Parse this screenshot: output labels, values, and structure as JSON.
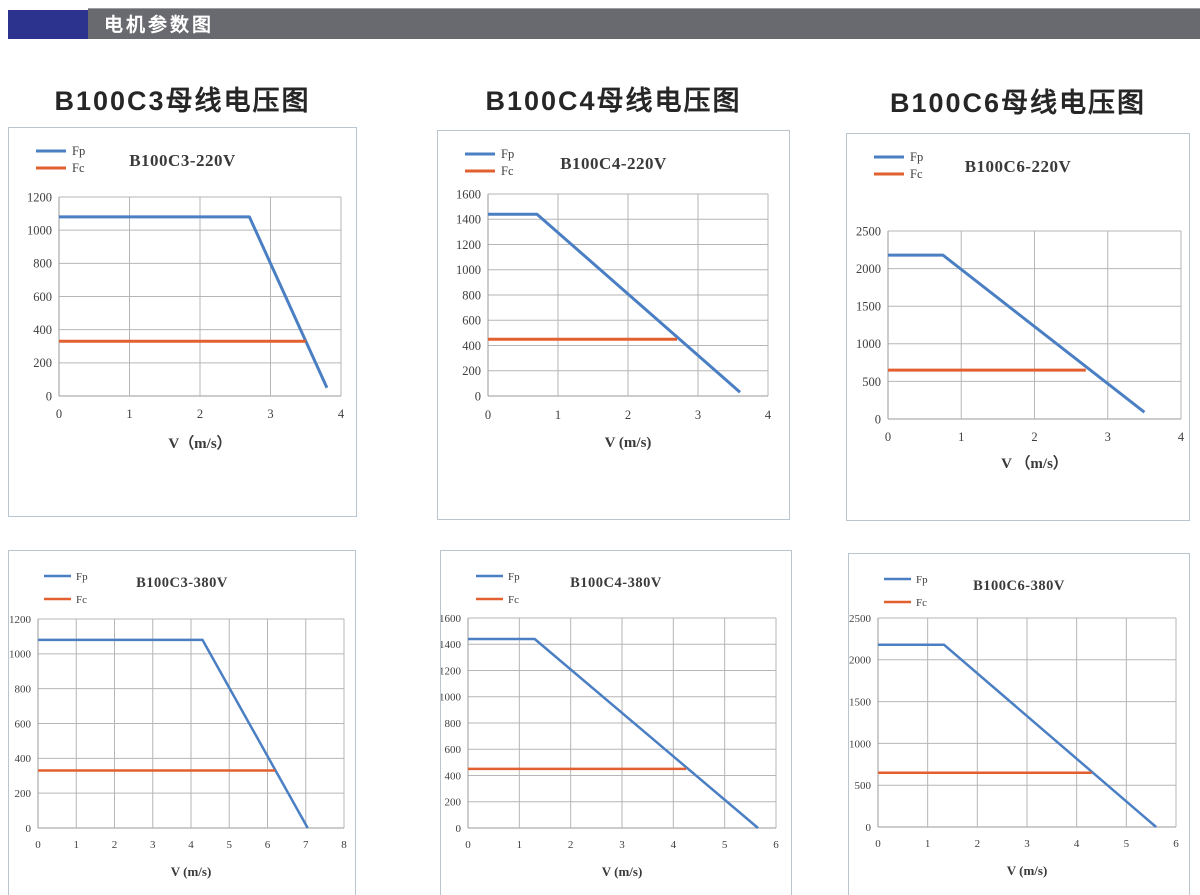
{
  "header": {
    "title": "电机参数图",
    "accent_color": "#2b338f",
    "bar_color": "#696970",
    "text_color": "#ffffff"
  },
  "columns": [
    {
      "title": "B100C3母线电压图"
    },
    {
      "title": "B100C4母线电压图"
    },
    {
      "title": "B100C6母线电压图"
    }
  ],
  "colors": {
    "fp": "#4b7fc3",
    "fc": "#e2602f",
    "grid": "#b6b6b6",
    "axis": "#999999",
    "panel_border": "#bac6cf",
    "text": "#3f3f3f"
  },
  "chart_data": [
    {
      "id": "b100c3-220v",
      "type": "line",
      "title": "B100C3-220V",
      "xlabel": "V（m/s）",
      "grid": true,
      "legend_position": "top-left",
      "xlim": [
        0,
        4
      ],
      "xticks": [
        0,
        1,
        2,
        3,
        4
      ],
      "ylim": [
        0,
        1200
      ],
      "yticks": [
        0,
        200,
        400,
        600,
        800,
        1000,
        1200
      ],
      "series": [
        {
          "name": "Fp",
          "color": "#4b7fc3",
          "points": [
            [
              0,
              1080
            ],
            [
              2.7,
              1080
            ],
            [
              3.8,
              50
            ]
          ]
        },
        {
          "name": "Fc",
          "color": "#e2602f",
          "points": [
            [
              0,
              330
            ],
            [
              3.5,
              330
            ]
          ]
        }
      ]
    },
    {
      "id": "b100c4-220v",
      "type": "line",
      "title": "B100C4-220V",
      "xlabel": "V (m/s)",
      "grid": true,
      "legend_position": "top-left",
      "xlim": [
        0,
        4
      ],
      "xticks": [
        0,
        1,
        2,
        3,
        4
      ],
      "ylim": [
        0,
        1600
      ],
      "yticks": [
        0,
        200,
        400,
        600,
        800,
        1000,
        1200,
        1400,
        1600
      ],
      "series": [
        {
          "name": "Fp",
          "color": "#4b7fc3",
          "points": [
            [
              0,
              1440
            ],
            [
              0.7,
              1440
            ],
            [
              3.6,
              30
            ]
          ]
        },
        {
          "name": "Fc",
          "color": "#e2602f",
          "points": [
            [
              0,
              450
            ],
            [
              2.7,
              450
            ]
          ]
        }
      ]
    },
    {
      "id": "b100c6-220v",
      "type": "line",
      "title": "B100C6-220V",
      "xlabel": "V （m/s）",
      "grid": true,
      "legend_position": "top-left",
      "xlim": [
        0,
        4
      ],
      "xticks": [
        0,
        1,
        2,
        3,
        4
      ],
      "ylim": [
        0,
        2500
      ],
      "yticks": [
        0,
        500,
        1000,
        1500,
        2000,
        2500
      ],
      "series": [
        {
          "name": "Fp",
          "color": "#4b7fc3",
          "points": [
            [
              0,
              2180
            ],
            [
              0.75,
              2180
            ],
            [
              3.5,
              90
            ]
          ]
        },
        {
          "name": "Fc",
          "color": "#e2602f",
          "points": [
            [
              0,
              650
            ],
            [
              2.7,
              650
            ]
          ]
        }
      ]
    },
    {
      "id": "b100c3-380v",
      "type": "line",
      "title": "B100C3-380V",
      "xlabel": "V (m/s)",
      "grid": true,
      "legend_position": "top-left",
      "xlim": [
        0,
        8
      ],
      "xticks": [
        0,
        1,
        2,
        3,
        4,
        5,
        6,
        7,
        8
      ],
      "ylim": [
        0,
        1200
      ],
      "yticks": [
        0,
        200,
        400,
        600,
        800,
        1000,
        1200
      ],
      "series": [
        {
          "name": "Fp",
          "color": "#4b7fc3",
          "points": [
            [
              0,
              1080
            ],
            [
              4.3,
              1080
            ],
            [
              7.05,
              0
            ]
          ]
        },
        {
          "name": "Fc",
          "color": "#e2602f",
          "points": [
            [
              0,
              330
            ],
            [
              6.2,
              330
            ]
          ]
        }
      ]
    },
    {
      "id": "b100c4-380v",
      "type": "line",
      "title": "B100C4-380V",
      "xlabel": "V (m/s)",
      "grid": true,
      "legend_position": "top-left",
      "xlim": [
        0,
        6
      ],
      "xticks": [
        0,
        1,
        2,
        3,
        4,
        5,
        6
      ],
      "ylim": [
        0,
        1600
      ],
      "yticks": [
        0,
        200,
        400,
        600,
        800,
        1000,
        1200,
        1400,
        1600
      ],
      "series": [
        {
          "name": "Fp",
          "color": "#4b7fc3",
          "points": [
            [
              0,
              1440
            ],
            [
              1.3,
              1440
            ],
            [
              5.65,
              0
            ]
          ]
        },
        {
          "name": "Fc",
          "color": "#e2602f",
          "points": [
            [
              0,
              450
            ],
            [
              4.25,
              450
            ]
          ]
        }
      ]
    },
    {
      "id": "b100c6-380v",
      "type": "line",
      "title": "B100C6-380V",
      "xlabel": "V (m/s)",
      "grid": true,
      "legend_position": "top-left",
      "xlim": [
        0,
        6
      ],
      "xticks": [
        0,
        1,
        2,
        3,
        4,
        5,
        6
      ],
      "ylim": [
        0,
        2500
      ],
      "yticks": [
        0,
        500,
        1000,
        1500,
        2000,
        2500
      ],
      "series": [
        {
          "name": "Fp",
          "color": "#4b7fc3",
          "points": [
            [
              0,
              2180
            ],
            [
              1.33,
              2180
            ],
            [
              5.6,
              0
            ]
          ]
        },
        {
          "name": "Fc",
          "color": "#e2602f",
          "points": [
            [
              0,
              650
            ],
            [
              4.3,
              650
            ]
          ]
        }
      ]
    }
  ]
}
